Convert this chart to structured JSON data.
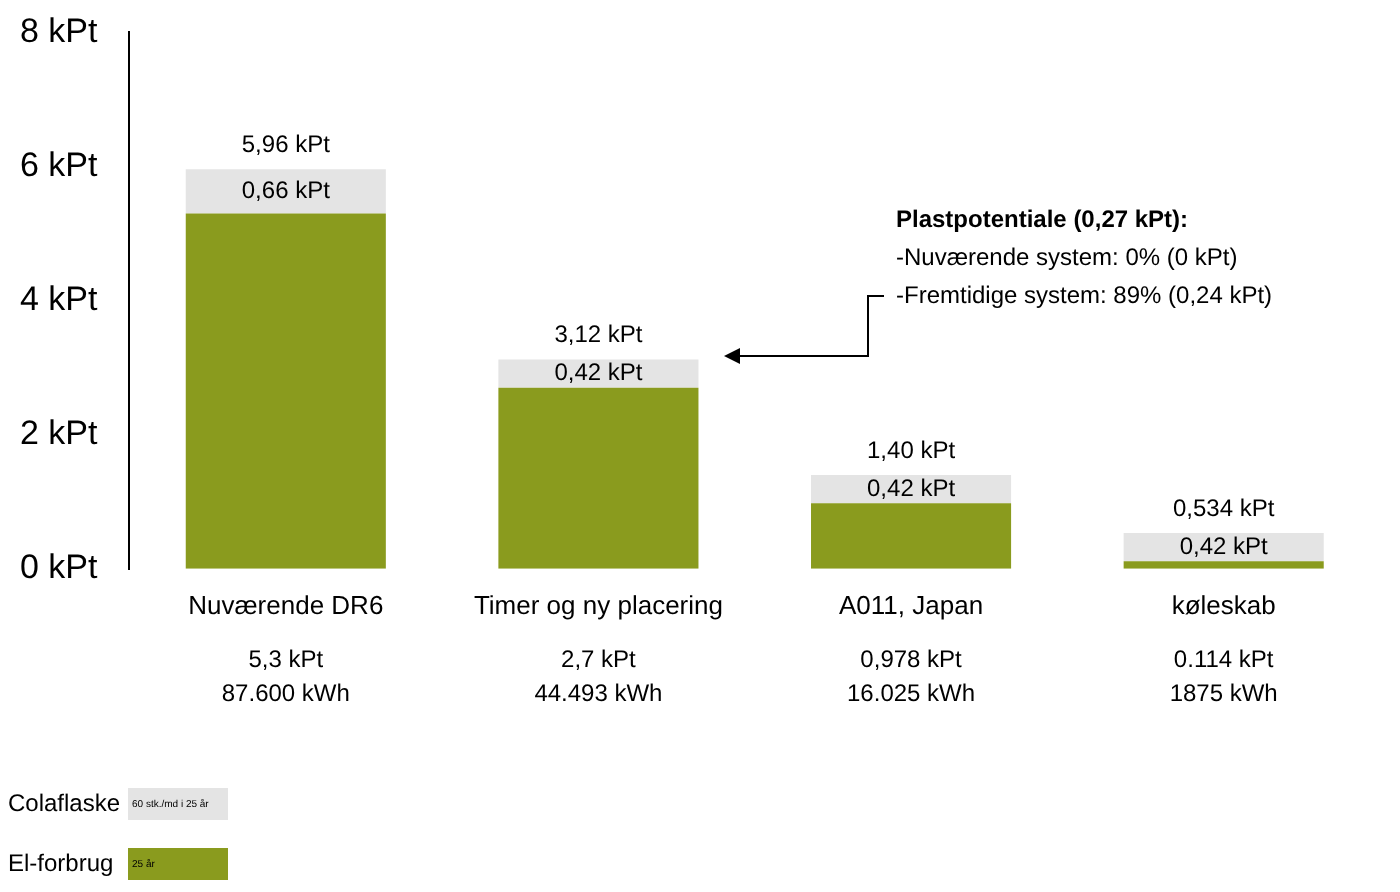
{
  "chart_data": {
    "type": "bar",
    "stacked": true,
    "categories": [
      "Nuværende DR6",
      "Timer og ny placering",
      "A011, Japan",
      "køleskab"
    ],
    "series": [
      {
        "name": "El-forbrug",
        "color": "#8a9b1e",
        "values": [
          5.3,
          2.7,
          0.978,
          0.114
        ]
      },
      {
        "name": "Colaflaske",
        "color": "#e4e4e4",
        "values": [
          0.66,
          0.42,
          0.42,
          0.42
        ],
        "value_labels": [
          "0,66 kPt",
          "0,42 kPt",
          "0,42 kPt",
          "0,42 kPt"
        ]
      }
    ],
    "totals": [
      "5,96 kPt",
      "3,12 kPt",
      "1,40 kPt",
      "0,534 kPt"
    ],
    "ylim": [
      0,
      8
    ],
    "yticks": [
      {
        "value": 0,
        "label": "0 kPt"
      },
      {
        "value": 2,
        "label": "2 kPt"
      },
      {
        "value": 4,
        "label": "4 kPt"
      },
      {
        "value": 6,
        "label": "6 kPt"
      },
      {
        "value": 8,
        "label": "8 kPt"
      }
    ],
    "grid": false,
    "legend": "bottom left",
    "annotations": [
      "Plastpotentiale (0,27 kPt):\n-Nuværende system: 0% (0 kPt)\n-Fremtidige system: 89% (0,24 kPt)",
      "5,3 kPt\n87.600 kWh",
      "2,7 kPt\n44.493 kWh",
      "0,978 kPt\n16.025 kWh",
      "0.114 kPt\n1875 kWh",
      "25 år",
      "60 stk./md i 25 år"
    ]
  }
}
